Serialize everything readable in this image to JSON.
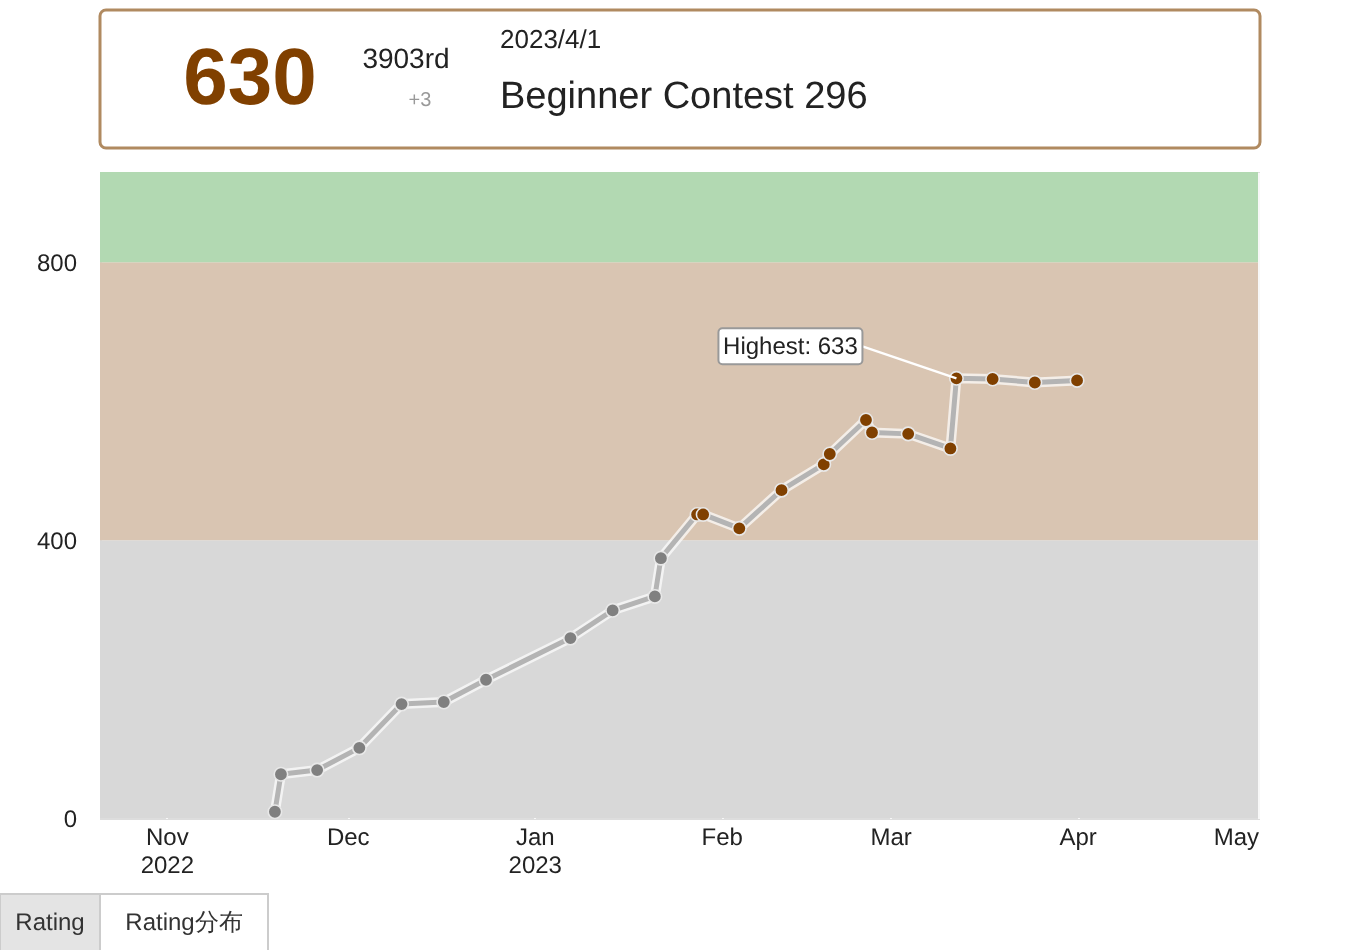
{
  "chart_data": {
    "type": "line",
    "x": [
      "2022-11-19",
      "2022-11-20",
      "2022-11-26",
      "2022-12-03",
      "2022-12-10",
      "2022-12-17",
      "2022-12-24",
      "2023-01-07",
      "2023-01-14",
      "2023-01-21",
      "2023-01-22",
      "2023-01-28",
      "2023-01-29",
      "2023-02-04",
      "2023-02-11",
      "2023-02-18",
      "2023-02-19",
      "2023-02-25",
      "2023-02-26",
      "2023-03-04",
      "2023-03-11",
      "2023-03-12",
      "2023-03-18",
      "2023-03-25",
      "2023-04-01"
    ],
    "series": [
      {
        "color": "#b4b4b4",
        "values": [
          9,
          63,
          69,
          101,
          164,
          167,
          199,
          259,
          299,
          319,
          374,
          437,
          437,
          417,
          472,
          509,
          524,
          573,
          555,
          553,
          532,
          633,
          632,
          627,
          630
        ],
        "colors": [
          "#808080",
          "#808080",
          "#808080",
          "#808080",
          "#808080",
          "#808080",
          "#808080",
          "#808080",
          "#808080",
          "#808080",
          "#808080",
          "#804000",
          "#804000",
          "#804000",
          "#804000",
          "#804000",
          "#804000",
          "#804000",
          "#804000",
          "#804000",
          "#804000",
          "#804000",
          "#804000",
          "#804000",
          "#804000"
        ]
      }
    ],
    "marker": "circle",
    "line_style": "solid",
    "xlim": [
      "2022-10-21",
      "2023-05-01"
    ],
    "xticks": [
      {
        "value": "2022-11-01",
        "label": "Nov 2022"
      },
      {
        "value": "2022-12-01",
        "label": "Dec"
      },
      {
        "value": "2023-01-01",
        "label": "Jan 2023"
      },
      {
        "value": "2023-02-01",
        "label": "Feb"
      },
      {
        "value": "2023-03-01",
        "label": "Mar"
      },
      {
        "value": "2023-04-01",
        "label": "Apr"
      },
      {
        "value": "2023-05-01",
        "label": "May"
      }
    ],
    "ylim": [
      0,
      930
    ],
    "yticks": [
      0,
      400,
      800
    ],
    "grid": "x",
    "bands": [
      {
        "axis": "y",
        "from": 0,
        "to": 400,
        "color": "#d8d8d8"
      },
      {
        "axis": "y",
        "from": 400,
        "to": 800,
        "color": "#d9c5b2"
      },
      {
        "axis": "y",
        "from": 800,
        "to": 930,
        "color": "#b2d9b2"
      }
    ],
    "annotations": [
      {
        "text": "Highest: 633",
        "x": "2023-03-12",
        "y": 633
      },
      "630",
      "3903rd",
      "+3",
      "2023/4/1",
      "Beginner Contest 296",
      "Rating",
      "Rating分布"
    ]
  }
}
